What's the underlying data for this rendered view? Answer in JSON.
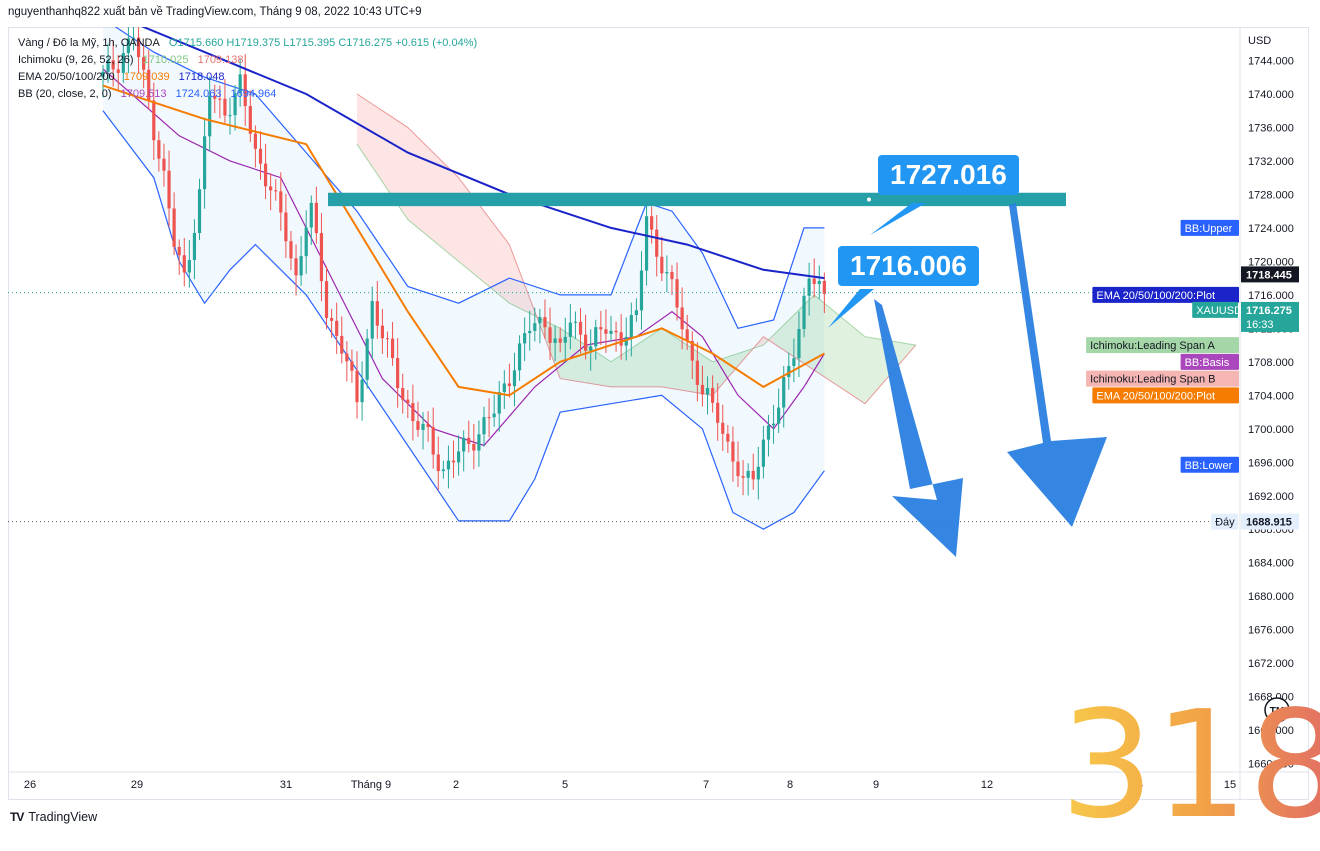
{
  "header": {
    "credit": "nguyenthanhq822 xuất bản về TradingView.com, Tháng 9 08, 2022 10:43 UTC+9"
  },
  "legend": {
    "symbol": "Vàng / Đô la Mỹ, 1h, OANDA",
    "ohlc": "O1715.660  H1719.375  L1715.395  C1716.275  +0.615 (+0.04%)",
    "ichimoku_label": "Ichimoku (9, 26, 52, 26)",
    "ichimoku_v1": "1710.025",
    "ichimoku_v2": "1709.138",
    "ema_label": "EMA 20/50/100/200",
    "ema_v1": "1709.039",
    "ema_v2": "1718.048",
    "bb_label": "BB (20, close, 2, 0)",
    "bb_v1": "1709.513",
    "bb_v2": "1724.063",
    "bb_v3": "1694.964"
  },
  "callouts": {
    "resistance": "1727.016",
    "price": "1716.006"
  },
  "score": "318",
  "footer": {
    "brand": "TradingView"
  },
  "colors": {
    "up": "#26a69a",
    "down": "#ef5350",
    "ema_slow": "#1a24c9",
    "ema_fast": "#f57c00",
    "bb": "#2962ff",
    "basis": "#9c27b0",
    "cloud_green": "#a5d6a7",
    "cloud_red": "#f5b5b2",
    "zone": "#26a0a8",
    "arrow": "#2a7fe0",
    "callout": "#2196f3"
  },
  "chart_data": {
    "type": "candlestick",
    "instrument": "XAUUSD",
    "timeframe": "1h",
    "y_axis": {
      "currency": "USD",
      "range": [
        1659,
        1748
      ],
      "ticks": [
        1744,
        1740,
        1736,
        1732,
        1728,
        1724,
        1720,
        1716,
        1712,
        1708,
        1704,
        1700,
        1696,
        1692,
        1688,
        1684,
        1680,
        1676,
        1672,
        1668,
        1664,
        1660
      ]
    },
    "x_axis": {
      "ticks": [
        "26",
        "29",
        "31",
        "Tháng 9",
        "2",
        "5",
        "7",
        "8",
        "9",
        "12",
        "14",
        "15"
      ]
    },
    "price_tags": [
      {
        "label": "",
        "value": "1718.445",
        "price": 1718.445,
        "bg": "#131722",
        "color": "#ffffff"
      },
      {
        "label": "BB:Upper",
        "value": "",
        "price": 1724.0,
        "bg": "#2962ff",
        "color": "#ffffff"
      },
      {
        "label": "EMA 20/50/100/200:Plot",
        "value": "",
        "price": 1716.0,
        "bg": "#1a24c9",
        "color": "#ffffff"
      },
      {
        "label": "XAUUSD",
        "value": "1716.275",
        "sub": "16:33",
        "price": 1714.2,
        "bg": "#26a69a",
        "color": "#ffffff"
      },
      {
        "label": "Ichimoku:Leading Span A",
        "value": "",
        "price": 1710.0,
        "bg": "#a5d6a7",
        "color": "#131722"
      },
      {
        "label": "BB:Basis",
        "value": "",
        "price": 1708.0,
        "bg": "#ab47bc",
        "color": "#ffffff"
      },
      {
        "label": "Ichimoku:Leading Span B",
        "value": "",
        "price": 1706.0,
        "bg": "#f5b5b2",
        "color": "#131722"
      },
      {
        "label": "EMA 20/50/100/200:Plot",
        "value": "",
        "price": 1704.0,
        "bg": "#f57c00",
        "color": "#ffffff"
      },
      {
        "label": "BB:Lower",
        "value": "",
        "price": 1695.7,
        "bg": "#2962ff",
        "color": "#ffffff"
      },
      {
        "label": "Đáy",
        "value": "1688.915",
        "price": 1688.915,
        "bg": "#e3effd",
        "color": "#131722"
      }
    ],
    "last_price": 1716.275,
    "low_level": 1688.915,
    "resistance_zone": [
      1726.6,
      1728.2
    ],
    "series_path": [
      [
        0,
        1742
      ],
      [
        3,
        1744
      ],
      [
        6,
        1747
      ],
      [
        9,
        1739
      ],
      [
        12,
        1730
      ],
      [
        14,
        1722
      ],
      [
        16,
        1718
      ],
      [
        19,
        1728
      ],
      [
        21,
        1740
      ],
      [
        24,
        1738
      ],
      [
        27,
        1741
      ],
      [
        30,
        1733
      ],
      [
        33,
        1729
      ],
      [
        36,
        1723
      ],
      [
        38,
        1718
      ],
      [
        40,
        1725
      ],
      [
        41,
        1726
      ],
      [
        44,
        1714
      ],
      [
        47,
        1710
      ],
      [
        50,
        1703
      ],
      [
        53,
        1715
      ],
      [
        55,
        1711
      ],
      [
        58,
        1706
      ],
      [
        61,
        1701
      ],
      [
        64,
        1699
      ],
      [
        67,
        1695
      ],
      [
        70,
        1697
      ],
      [
        73,
        1699
      ],
      [
        77,
        1702
      ],
      [
        81,
        1708
      ],
      [
        84,
        1712
      ],
      [
        87,
        1713
      ],
      [
        90,
        1709
      ],
      [
        92,
        1713
      ],
      [
        96,
        1710
      ],
      [
        99,
        1712
      ],
      [
        102,
        1711
      ],
      [
        105,
        1713
      ],
      [
        107,
        1726
      ],
      [
        109,
        1721
      ],
      [
        111,
        1718
      ],
      [
        114,
        1713
      ],
      [
        116,
        1708
      ],
      [
        118,
        1704
      ],
      [
        121,
        1702
      ],
      [
        123,
        1698
      ],
      [
        126,
        1693
      ],
      [
        128,
        1695
      ],
      [
        131,
        1700
      ],
      [
        133,
        1702
      ],
      [
        135,
        1708
      ],
      [
        137,
        1712
      ],
      [
        139,
        1718
      ],
      [
        142,
        1716
      ]
    ],
    "ema_slow": [
      [
        0,
        1750
      ],
      [
        20,
        1745
      ],
      [
        40,
        1740
      ],
      [
        60,
        1733
      ],
      [
        80,
        1728
      ],
      [
        100,
        1724
      ],
      [
        115,
        1722
      ],
      [
        130,
        1719
      ],
      [
        142,
        1718
      ]
    ],
    "ema_fast": [
      [
        0,
        1741
      ],
      [
        20,
        1737
      ],
      [
        40,
        1734
      ],
      [
        50,
        1724
      ],
      [
        60,
        1714
      ],
      [
        70,
        1705
      ],
      [
        80,
        1704
      ],
      [
        90,
        1708
      ],
      [
        100,
        1710
      ],
      [
        110,
        1712
      ],
      [
        120,
        1709
      ],
      [
        130,
        1705
      ],
      [
        142,
        1709
      ]
    ],
    "bb_upper": [
      [
        0,
        1749
      ],
      [
        10,
        1745
      ],
      [
        20,
        1742
      ],
      [
        30,
        1740
      ],
      [
        40,
        1733
      ],
      [
        50,
        1726
      ],
      [
        60,
        1717
      ],
      [
        70,
        1715
      ],
      [
        80,
        1718
      ],
      [
        90,
        1716
      ],
      [
        100,
        1716
      ],
      [
        107,
        1727
      ],
      [
        112,
        1726
      ],
      [
        118,
        1721
      ],
      [
        125,
        1712
      ],
      [
        132,
        1713
      ],
      [
        138,
        1724
      ],
      [
        142,
        1724
      ]
    ],
    "bb_lower": [
      [
        0,
        1738
      ],
      [
        10,
        1730
      ],
      [
        15,
        1720
      ],
      [
        20,
        1715
      ],
      [
        25,
        1719
      ],
      [
        30,
        1722
      ],
      [
        40,
        1716
      ],
      [
        50,
        1707
      ],
      [
        60,
        1698
      ],
      [
        70,
        1689
      ],
      [
        80,
        1689
      ],
      [
        85,
        1694
      ],
      [
        90,
        1702
      ],
      [
        100,
        1703
      ],
      [
        110,
        1704
      ],
      [
        118,
        1700
      ],
      [
        124,
        1690
      ],
      [
        130,
        1688
      ],
      [
        136,
        1690
      ],
      [
        142,
        1695
      ]
    ],
    "bb_basis": [
      [
        0,
        1743
      ],
      [
        15,
        1735
      ],
      [
        25,
        1732
      ],
      [
        35,
        1730
      ],
      [
        45,
        1718
      ],
      [
        55,
        1706
      ],
      [
        65,
        1700
      ],
      [
        75,
        1698
      ],
      [
        85,
        1705
      ],
      [
        95,
        1710
      ],
      [
        105,
        1711
      ],
      [
        112,
        1714
      ],
      [
        118,
        1711
      ],
      [
        125,
        1704
      ],
      [
        132,
        1700
      ],
      [
        138,
        1705
      ],
      [
        142,
        1709
      ]
    ],
    "cloud_a": [
      [
        50,
        1734
      ],
      [
        60,
        1725
      ],
      [
        70,
        1720
      ],
      [
        80,
        1715
      ],
      [
        90,
        1712
      ],
      [
        100,
        1708
      ],
      [
        110,
        1712
      ],
      [
        120,
        1708
      ],
      [
        130,
        1710
      ],
      [
        140,
        1716
      ],
      [
        150,
        1711
      ],
      [
        160,
        1710
      ]
    ],
    "cloud_b": [
      [
        50,
        1740
      ],
      [
        60,
        1736
      ],
      [
        70,
        1730
      ],
      [
        80,
        1722
      ],
      [
        90,
        1706
      ],
      [
        100,
        1705
      ],
      [
        110,
        1705
      ],
      [
        120,
        1704
      ],
      [
        130,
        1711
      ],
      [
        140,
        1707
      ],
      [
        150,
        1703
      ],
      [
        160,
        1710
      ]
    ]
  }
}
